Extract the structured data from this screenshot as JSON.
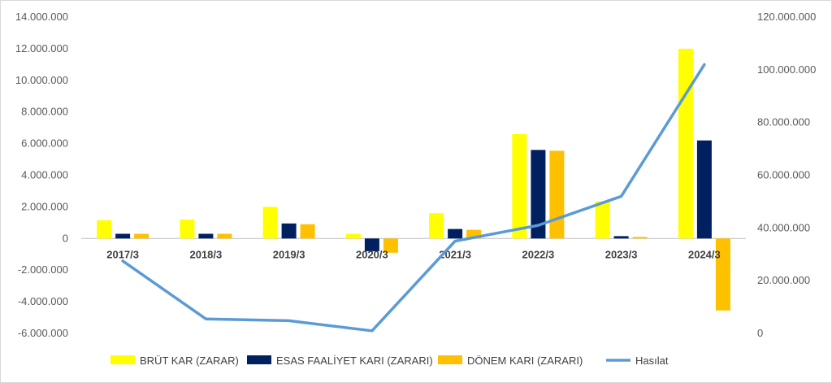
{
  "chart_data": {
    "type": "bar",
    "categories": [
      "2017/3",
      "2018/3",
      "2019/3",
      "2020/3",
      "2021/3",
      "2022/3",
      "2023/3",
      "2024/3"
    ],
    "series": [
      {
        "name": "BRÜT KAR (ZARAR)",
        "kind": "bar",
        "axis": "left",
        "color": "#ffff00",
        "values": [
          1150000,
          1200000,
          2000000,
          300000,
          1600000,
          6600000,
          2350000,
          12000000
        ]
      },
      {
        "name": "ESAS FAALİYET KARI (ZARARI)",
        "kind": "bar",
        "axis": "left",
        "color": "#002060",
        "values": [
          300000,
          300000,
          950000,
          -800000,
          600000,
          5600000,
          150000,
          6200000
        ]
      },
      {
        "name": "DÖNEM KARI (ZARARI)",
        "kind": "bar",
        "axis": "left",
        "color": "#ffc000",
        "values": [
          300000,
          300000,
          900000,
          -900000,
          550000,
          5550000,
          100000,
          -4550000
        ]
      },
      {
        "name": "Hasılat",
        "kind": "line",
        "axis": "right",
        "color": "#5b9bd5",
        "values": [
          27500000,
          5500000,
          4800000,
          1000000,
          35000000,
          41000000,
          52000000,
          102000000
        ]
      }
    ],
    "left_axis": {
      "min": -6000000,
      "max": 14000000,
      "step": 2000000,
      "tick_labels": [
        "-6.000.000",
        "-4.000.000",
        "-2.000.000",
        "0",
        "2.000.000",
        "4.000.000",
        "6.000.000",
        "8.000.000",
        "10.000.000",
        "12.000.000",
        "14.000.000"
      ]
    },
    "right_axis": {
      "min": 0,
      "max": 120000000,
      "step": 20000000,
      "tick_labels": [
        "0",
        "20.000.000",
        "40.000.000",
        "60.000.000",
        "80.000.000",
        "100.000.000",
        "120.000.000"
      ]
    },
    "grid": false,
    "legend_position": "bottom"
  }
}
